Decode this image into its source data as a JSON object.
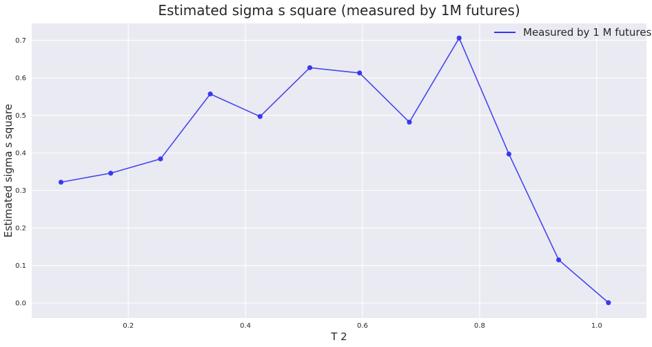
{
  "chart_data": {
    "type": "line",
    "title": "Estimated sigma s square (measured by 1M futures)",
    "xlabel": "T 2",
    "ylabel": "Estimated sigma s square",
    "xlim": [
      0.035,
      1.085
    ],
    "ylim": [
      -0.04,
      0.745
    ],
    "x_ticks": [
      0.2,
      0.4,
      0.6,
      0.8,
      1.0
    ],
    "x_tick_labels": [
      "0.2",
      "0.4",
      "0.6",
      "0.8",
      "1.0"
    ],
    "y_ticks": [
      0.0,
      0.1,
      0.2,
      0.3,
      0.4,
      0.5,
      0.6,
      0.7
    ],
    "y_tick_labels": [
      "0.0",
      "0.1",
      "0.2",
      "0.3",
      "0.4",
      "0.5",
      "0.6",
      "0.7"
    ],
    "grid": true,
    "legend_position": "top-right",
    "series": [
      {
        "name": "Measured by 1 M futures",
        "color": "#3333ee",
        "x": [
          0.085,
          0.17,
          0.255,
          0.34,
          0.425,
          0.51,
          0.595,
          0.68,
          0.765,
          0.85,
          0.935,
          1.02
        ],
        "y": [
          0.322,
          0.346,
          0.384,
          0.557,
          0.497,
          0.627,
          0.613,
          0.482,
          0.706,
          0.397,
          0.115,
          0.001
        ]
      }
    ]
  }
}
